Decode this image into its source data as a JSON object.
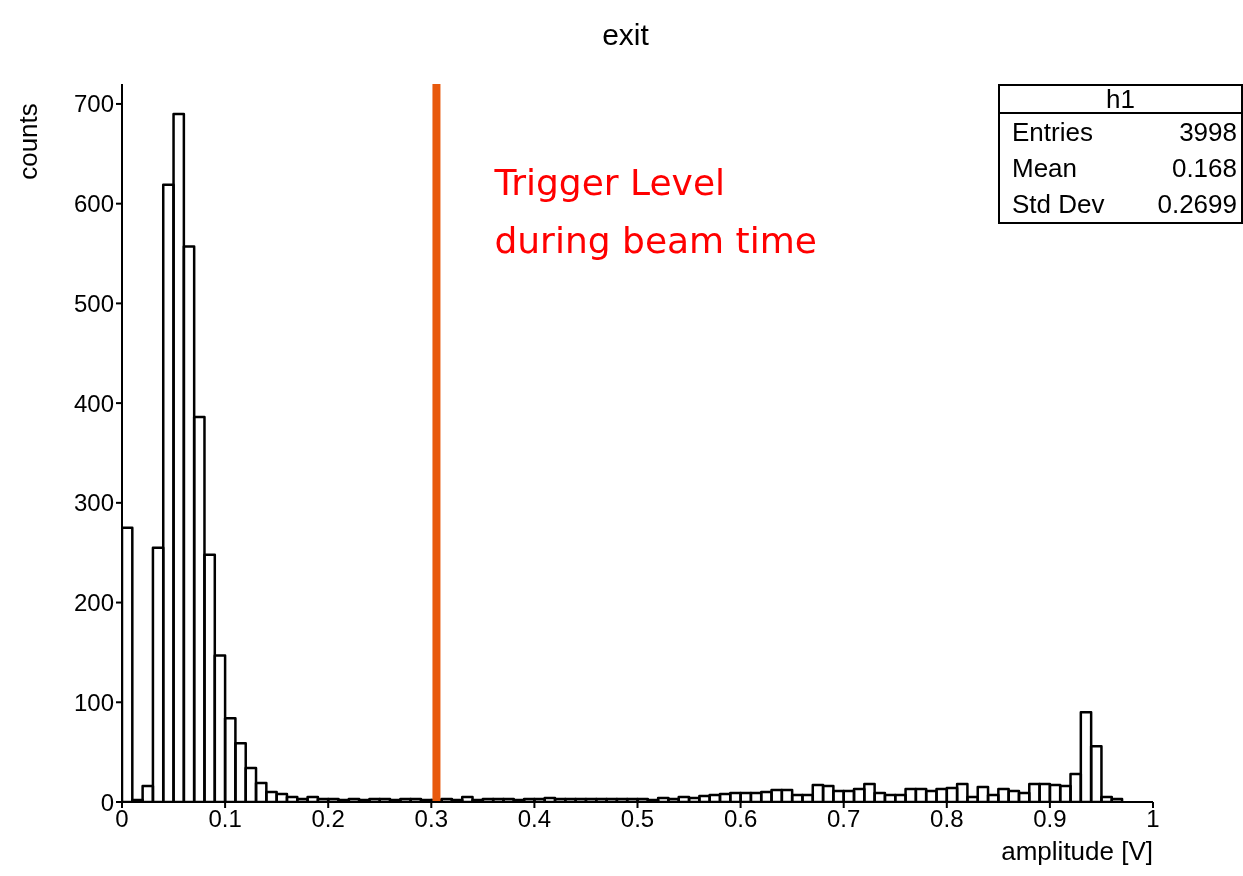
{
  "chart_data": {
    "type": "histogram",
    "title": "exit",
    "xlabel": "amplitude [V]",
    "ylabel": "counts",
    "color": "#000000",
    "bins": [
      0,
      0.01,
      0.02,
      0.03,
      0.04,
      0.05,
      0.06,
      0.07,
      0.08,
      0.09,
      0.1,
      0.11,
      0.12,
      0.13,
      0.14,
      0.15,
      0.16,
      0.17,
      0.18,
      0.19,
      0.2,
      0.21,
      0.22,
      0.23,
      0.24,
      0.25,
      0.26,
      0.27,
      0.28,
      0.29,
      0.3,
      0.31,
      0.32,
      0.33,
      0.34,
      0.35,
      0.36,
      0.37,
      0.38,
      0.39,
      0.4,
      0.41,
      0.42,
      0.43,
      0.44,
      0.45,
      0.46,
      0.47,
      0.48,
      0.49,
      0.5,
      0.51,
      0.52,
      0.53,
      0.54,
      0.55,
      0.56,
      0.57,
      0.58,
      0.59,
      0.6,
      0.61,
      0.62,
      0.63,
      0.64,
      0.65,
      0.66,
      0.67,
      0.68,
      0.69,
      0.7,
      0.71,
      0.72,
      0.73,
      0.74,
      0.75,
      0.76,
      0.77,
      0.78,
      0.79,
      0.8,
      0.81,
      0.82,
      0.83,
      0.84,
      0.85,
      0.86,
      0.87,
      0.88,
      0.89,
      0.9,
      0.91,
      0.92,
      0.93,
      0.94,
      0.95,
      0.96,
      0.97,
      0.98,
      0.99,
      1
    ],
    "values": [
      275,
      2,
      16,
      255,
      619,
      690,
      557,
      386,
      248,
      147,
      84,
      59,
      34,
      19,
      10,
      8,
      5,
      3,
      5,
      3,
      3,
      2,
      3,
      2,
      3,
      3,
      2,
      3,
      3,
      2,
      2,
      3,
      2,
      5,
      2,
      3,
      3,
      3,
      2,
      3,
      3,
      4,
      3,
      3,
      3,
      3,
      3,
      3,
      3,
      3,
      3,
      2,
      4,
      3,
      5,
      4,
      6,
      7,
      8,
      9,
      9,
      9,
      10,
      12,
      12,
      7,
      7,
      17,
      16,
      11,
      11,
      13,
      18,
      9,
      7,
      7,
      13,
      13,
      11,
      13,
      14,
      18,
      5,
      15,
      7,
      13,
      11,
      9,
      18,
      18,
      17,
      16,
      28,
      90,
      56,
      5,
      3,
      0,
      0,
      0
    ],
    "xlim": [
      0,
      1
    ],
    "ylim": [
      0,
      720
    ],
    "xticks": [
      0,
      0.1,
      0.2,
      0.3,
      0.4,
      0.5,
      0.6,
      0.7,
      0.8,
      0.9,
      1
    ],
    "yticks": [
      0,
      100,
      200,
      300,
      400,
      500,
      600,
      700
    ],
    "ref_lines": [
      {
        "axis": "x",
        "value": 0.305,
        "label": "Trigger Level\nduring beam time",
        "color": "#e8590c"
      }
    ],
    "annotations": [
      "h1",
      "Entries 3998",
      "Mean 0.168",
      "Std Dev 0.2699"
    ]
  }
}
